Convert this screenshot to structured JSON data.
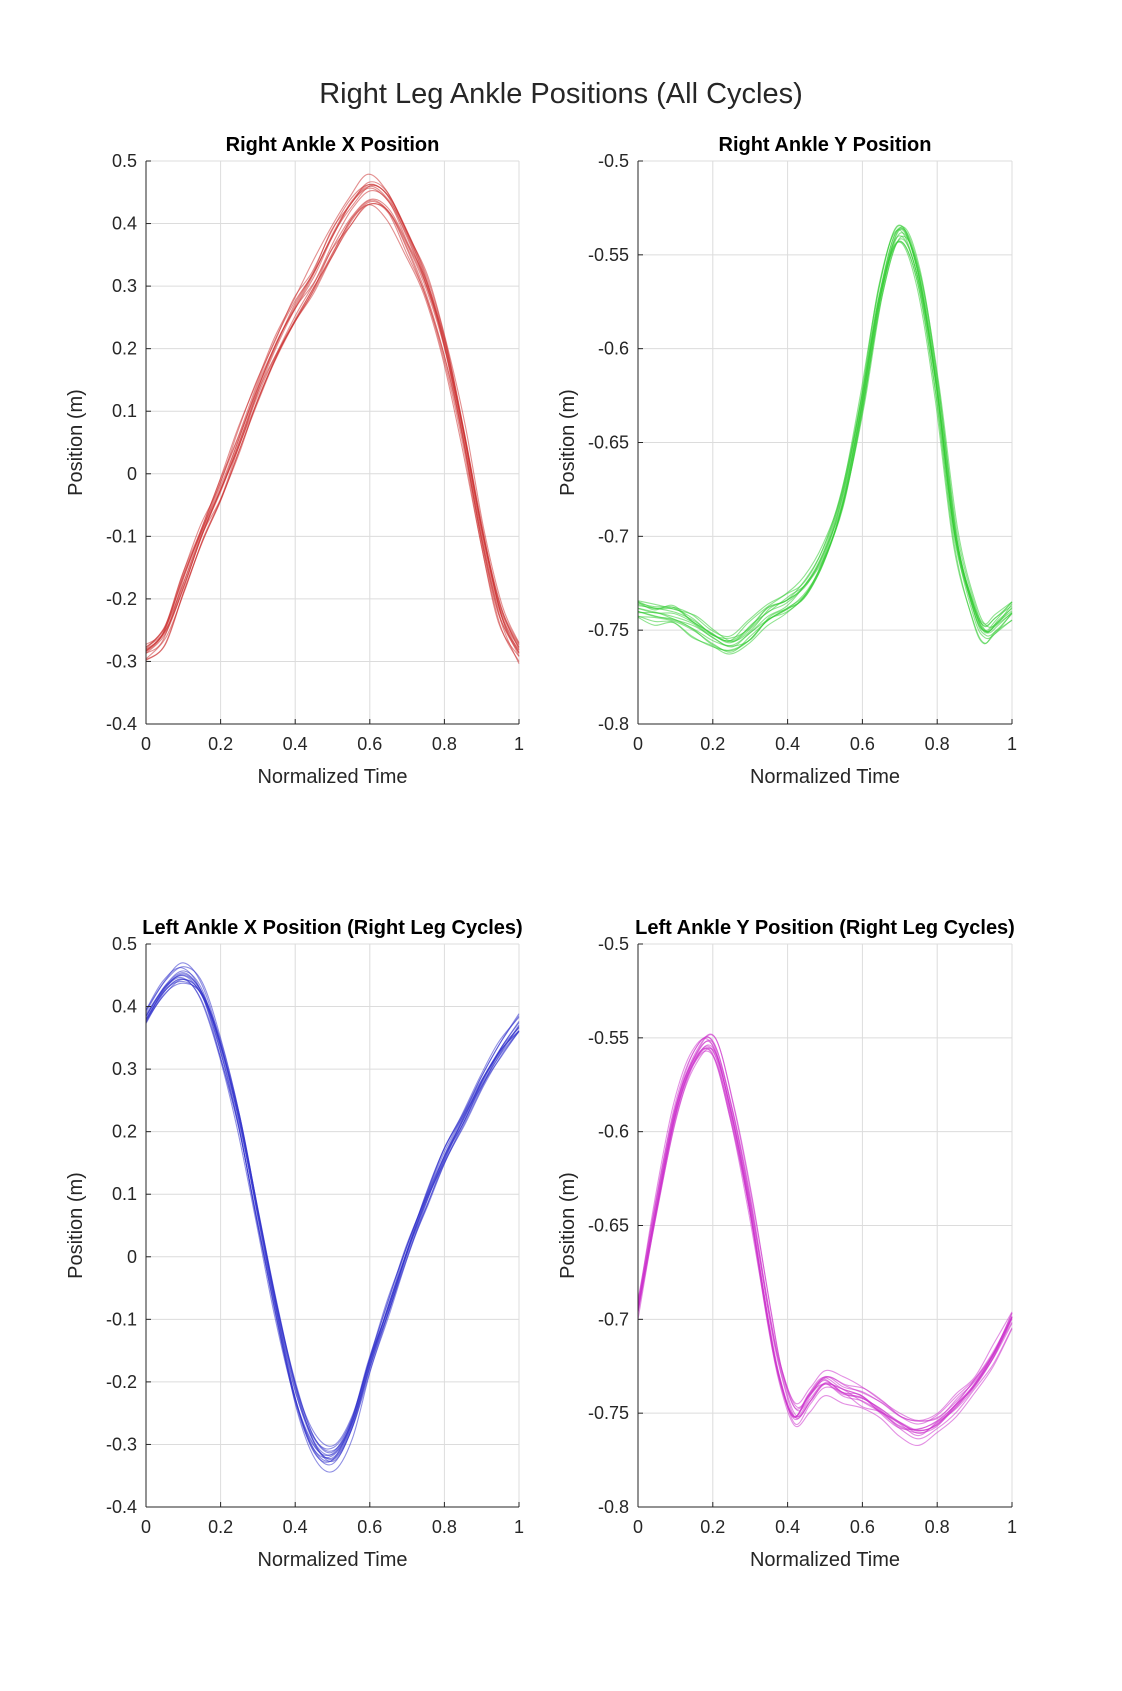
{
  "figure": {
    "title": "Right Leg Ankle Positions (All Cycles)"
  },
  "chart_data": [
    {
      "type": "line",
      "title": "Right Ankle X Position",
      "xlabel": "Normalized Time",
      "ylabel": "Position (m)",
      "xlim": [
        0,
        1
      ],
      "ylim": [
        -0.4,
        0.5
      ],
      "xticks": [
        "0",
        "0.2",
        "0.4",
        "0.6",
        "0.8",
        "1"
      ],
      "yticks": [
        "-0.4",
        "-0.3",
        "-0.2",
        "-0.1",
        "0",
        "0.1",
        "0.2",
        "0.3",
        "0.4",
        "0.5"
      ],
      "grid": true,
      "color": "#cc3333",
      "cycles": 14,
      "x": [
        0,
        0.05,
        0.1,
        0.15,
        0.2,
        0.25,
        0.3,
        0.35,
        0.4,
        0.45,
        0.5,
        0.55,
        0.6,
        0.65,
        0.7,
        0.75,
        0.8,
        0.85,
        0.9,
        0.95,
        1.0
      ],
      "y": [
        -0.29,
        -0.26,
        -0.18,
        -0.1,
        -0.03,
        0.05,
        0.13,
        0.2,
        0.26,
        0.31,
        0.37,
        0.42,
        0.45,
        0.43,
        0.37,
        0.3,
        0.2,
        0.06,
        -0.1,
        -0.23,
        -0.29
      ]
    },
    {
      "type": "line",
      "title": "Right Ankle Y Position",
      "xlabel": "Normalized Time",
      "ylabel": "Position (m)",
      "xlim": [
        0,
        1
      ],
      "ylim": [
        -0.8,
        -0.5
      ],
      "xticks": [
        "0",
        "0.2",
        "0.4",
        "0.6",
        "0.8",
        "1"
      ],
      "yticks": [
        "-0.8",
        "-0.75",
        "-0.7",
        "-0.65",
        "-0.6",
        "-0.55",
        "-0.5"
      ],
      "grid": true,
      "color": "#33cc33",
      "cycles": 14,
      "x": [
        0,
        0.05,
        0.1,
        0.15,
        0.2,
        0.25,
        0.3,
        0.35,
        0.4,
        0.45,
        0.5,
        0.55,
        0.6,
        0.65,
        0.7,
        0.75,
        0.8,
        0.85,
        0.9,
        0.93,
        0.96,
        1.0
      ],
      "y": [
        -0.74,
        -0.742,
        -0.743,
        -0.748,
        -0.755,
        -0.759,
        -0.752,
        -0.743,
        -0.737,
        -0.728,
        -0.71,
        -0.68,
        -0.63,
        -0.57,
        -0.538,
        -0.56,
        -0.62,
        -0.7,
        -0.74,
        -0.752,
        -0.748,
        -0.74
      ]
    },
    {
      "type": "line",
      "title": "Left Ankle X Position (Right Leg Cycles)",
      "xlabel": "Normalized Time",
      "ylabel": "Position (m)",
      "xlim": [
        0,
        1
      ],
      "ylim": [
        -0.4,
        0.5
      ],
      "xticks": [
        "0",
        "0.2",
        "0.4",
        "0.6",
        "0.8",
        "1"
      ],
      "yticks": [
        "-0.4",
        "-0.3",
        "-0.2",
        "-0.1",
        "0",
        "0.1",
        "0.2",
        "0.3",
        "0.4",
        "0.5"
      ],
      "grid": true,
      "color": "#3333cc",
      "cycles": 14,
      "x": [
        0,
        0.05,
        0.1,
        0.15,
        0.2,
        0.25,
        0.3,
        0.35,
        0.4,
        0.45,
        0.5,
        0.55,
        0.6,
        0.65,
        0.7,
        0.75,
        0.8,
        0.85,
        0.9,
        0.95,
        1.0
      ],
      "y": [
        0.38,
        0.43,
        0.45,
        0.42,
        0.33,
        0.21,
        0.06,
        -0.09,
        -0.22,
        -0.3,
        -0.32,
        -0.27,
        -0.17,
        -0.08,
        0.01,
        0.09,
        0.16,
        0.22,
        0.28,
        0.33,
        0.37
      ]
    },
    {
      "type": "line",
      "title": "Left Ankle Y Position (Right Leg Cycles)",
      "xlabel": "Normalized Time",
      "ylabel": "Position (m)",
      "xlim": [
        0,
        1
      ],
      "ylim": [
        -0.8,
        -0.5
      ],
      "xticks": [
        "0",
        "0.2",
        "0.4",
        "0.6",
        "0.8",
        "1"
      ],
      "yticks": [
        "-0.8",
        "-0.75",
        "-0.7",
        "-0.65",
        "-0.6",
        "-0.55",
        "-0.5"
      ],
      "grid": true,
      "color": "#cc33cc",
      "cycles": 14,
      "x": [
        0,
        0.05,
        0.1,
        0.15,
        0.2,
        0.25,
        0.3,
        0.35,
        0.38,
        0.42,
        0.46,
        0.5,
        0.55,
        0.6,
        0.65,
        0.7,
        0.75,
        0.8,
        0.85,
        0.9,
        0.95,
        1.0
      ],
      "y": [
        -0.695,
        -0.64,
        -0.59,
        -0.562,
        -0.555,
        -0.59,
        -0.64,
        -0.7,
        -0.73,
        -0.751,
        -0.742,
        -0.733,
        -0.738,
        -0.742,
        -0.748,
        -0.756,
        -0.759,
        -0.755,
        -0.746,
        -0.735,
        -0.72,
        -0.7
      ]
    }
  ]
}
